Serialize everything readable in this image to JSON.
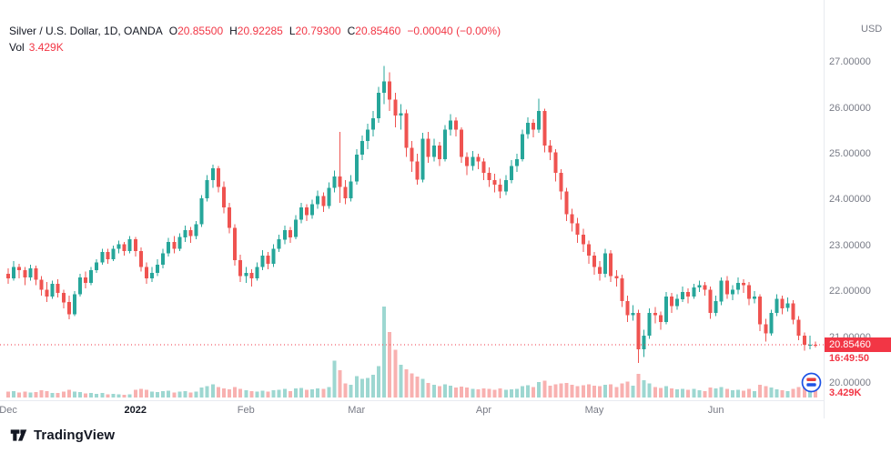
{
  "legend": {
    "symbol": "Silver / U.S. Dollar, 1D, OANDA",
    "open_label": "O",
    "open_value": "20.85500",
    "high_label": "H",
    "high_value": "20.92285",
    "low_label": "L",
    "low_value": "20.79300",
    "close_label": "C",
    "close_value": "20.85460",
    "change": "−0.00040 (−0.00%)",
    "vol_label": "Vol",
    "vol_value": "3.429K"
  },
  "price_axis": {
    "currency": "USD",
    "ticks": [
      "27.00000",
      "26.00000",
      "25.00000",
      "24.00000",
      "23.00000",
      "22.00000",
      "21.00000",
      "20.00000"
    ],
    "tick_values": [
      27,
      26,
      25,
      24,
      23,
      22,
      21,
      20
    ],
    "last_price": "20.85460",
    "countdown": "16:49:50",
    "volume_label": "3.429K"
  },
  "time_axis": {
    "ticks": [
      {
        "index": 0,
        "label": "Dec",
        "major": false
      },
      {
        "index": 23,
        "label": "2022",
        "major": true
      },
      {
        "index": 43,
        "label": "Feb",
        "major": false
      },
      {
        "index": 63,
        "label": "Mar",
        "major": false
      },
      {
        "index": 86,
        "label": "Apr",
        "major": false
      },
      {
        "index": 106,
        "label": "May",
        "major": false
      },
      {
        "index": 128,
        "label": "Jun",
        "major": false
      }
    ]
  },
  "footer": {
    "brand": "TradingView"
  },
  "colors": {
    "up": "#26a69a",
    "down": "#ef5350",
    "accent_red": "#f23645",
    "text": "#131722",
    "muted": "#787b86"
  },
  "chart_data": {
    "type": "candlestick",
    "title": "Silver / U.S. Dollar, 1D, OANDA",
    "timeframe": "1D",
    "ylabel": "USD",
    "ylim": [
      19.7,
      27.9
    ],
    "last_price": 20.8546,
    "volume_unit": "K",
    "vol_max": 35,
    "candles_format": [
      "open",
      "high",
      "low",
      "close",
      "volume_K"
    ],
    "candles": [
      [
        22.4,
        22.52,
        22.18,
        22.3,
        2.1
      ],
      [
        22.3,
        22.68,
        22.25,
        22.55,
        2.4
      ],
      [
        22.55,
        22.62,
        22.3,
        22.48,
        1.9
      ],
      [
        22.48,
        22.55,
        22.15,
        22.32,
        2.2
      ],
      [
        22.32,
        22.6,
        22.25,
        22.52,
        1.8
      ],
      [
        22.52,
        22.58,
        22.15,
        22.27,
        2.0
      ],
      [
        22.27,
        22.35,
        21.92,
        22.05,
        2.6
      ],
      [
        22.05,
        22.22,
        21.78,
        21.9,
        2.3
      ],
      [
        21.9,
        22.25,
        21.85,
        22.18,
        1.7
      ],
      [
        22.18,
        22.28,
        21.88,
        21.98,
        1.6
      ],
      [
        21.98,
        22.05,
        21.65,
        21.78,
        2.1
      ],
      [
        21.78,
        21.92,
        21.41,
        21.52,
        2.9
      ],
      [
        21.52,
        22.02,
        21.48,
        21.95,
        2.2
      ],
      [
        21.95,
        22.4,
        21.9,
        22.32,
        2.0
      ],
      [
        22.32,
        22.45,
        22.08,
        22.2,
        1.5
      ],
      [
        22.2,
        22.55,
        22.15,
        22.48,
        1.7
      ],
      [
        22.48,
        22.72,
        22.42,
        22.65,
        1.4
      ],
      [
        22.65,
        22.95,
        22.6,
        22.88,
        1.6
      ],
      [
        22.88,
        22.95,
        22.62,
        22.72,
        1.2
      ],
      [
        22.72,
        23.02,
        22.68,
        22.95,
        1.3
      ],
      [
        22.95,
        23.12,
        22.85,
        23.05,
        1.1
      ],
      [
        23.05,
        23.1,
        22.8,
        22.9,
        1.0
      ],
      [
        22.9,
        23.22,
        22.85,
        23.15,
        1.2
      ],
      [
        23.15,
        23.2,
        22.78,
        22.9,
        2.8
      ],
      [
        22.9,
        22.98,
        22.45,
        22.55,
        3.1
      ],
      [
        22.55,
        22.65,
        22.18,
        22.3,
        2.9
      ],
      [
        22.3,
        22.55,
        22.22,
        22.42,
        2.2
      ],
      [
        22.42,
        22.72,
        22.35,
        22.6,
        2.0
      ],
      [
        22.6,
        22.95,
        22.52,
        22.85,
        2.3
      ],
      [
        22.85,
        23.18,
        22.78,
        23.1,
        2.5
      ],
      [
        23.1,
        23.22,
        22.85,
        22.95,
        1.9
      ],
      [
        22.95,
        23.28,
        22.9,
        23.2,
        2.1
      ],
      [
        23.2,
        23.45,
        23.1,
        23.35,
        2.4
      ],
      [
        23.35,
        23.42,
        23.08,
        23.22,
        1.8
      ],
      [
        23.22,
        23.55,
        23.15,
        23.48,
        2.2
      ],
      [
        23.48,
        24.12,
        23.42,
        24.05,
        3.6
      ],
      [
        24.05,
        24.55,
        23.98,
        24.45,
        4.2
      ],
      [
        24.45,
        24.78,
        24.28,
        24.7,
        4.8
      ],
      [
        24.7,
        24.75,
        24.18,
        24.3,
        3.9
      ],
      [
        24.3,
        24.42,
        23.72,
        23.85,
        3.4
      ],
      [
        23.85,
        23.95,
        23.28,
        23.4,
        3.0
      ],
      [
        23.4,
        23.48,
        22.58,
        22.7,
        3.8
      ],
      [
        22.7,
        22.82,
        22.22,
        22.35,
        3.2
      ],
      [
        22.35,
        22.55,
        22.2,
        22.42,
        2.6
      ],
      [
        22.42,
        22.5,
        22.12,
        22.3,
        2.4
      ],
      [
        22.3,
        22.65,
        22.25,
        22.55,
        2.2
      ],
      [
        22.55,
        22.92,
        22.48,
        22.8,
        2.5
      ],
      [
        22.8,
        22.88,
        22.5,
        22.62,
        2.1
      ],
      [
        22.62,
        23.05,
        22.55,
        22.95,
        2.7
      ],
      [
        22.95,
        23.25,
        22.88,
        23.15,
        2.9
      ],
      [
        23.15,
        23.45,
        23.05,
        23.35,
        3.1
      ],
      [
        23.35,
        23.42,
        23.08,
        23.2,
        2.3
      ],
      [
        23.2,
        23.68,
        23.15,
        23.58,
        3.3
      ],
      [
        23.58,
        23.95,
        23.5,
        23.85,
        3.5
      ],
      [
        23.85,
        23.92,
        23.55,
        23.68,
        2.8
      ],
      [
        23.68,
        24.02,
        23.6,
        23.92,
        3.0
      ],
      [
        23.92,
        24.22,
        23.82,
        24.1,
        3.4
      ],
      [
        24.1,
        24.18,
        23.75,
        23.88,
        3.1
      ],
      [
        23.88,
        24.4,
        23.82,
        24.28,
        3.8
      ],
      [
        24.28,
        24.65,
        24.18,
        24.52,
        13.5
      ],
      [
        24.52,
        25.5,
        23.95,
        24.3,
        10.0
      ],
      [
        24.3,
        24.45,
        23.92,
        24.05,
        5.2
      ],
      [
        24.05,
        24.55,
        23.98,
        24.42,
        4.6
      ],
      [
        24.42,
        25.12,
        24.35,
        25.0,
        7.8
      ],
      [
        25.0,
        25.42,
        24.88,
        25.3,
        6.9
      ],
      [
        25.3,
        25.68,
        25.12,
        25.55,
        7.2
      ],
      [
        25.55,
        25.95,
        25.4,
        25.8,
        8.4
      ],
      [
        25.8,
        26.48,
        25.7,
        26.35,
        11.5
      ],
      [
        26.35,
        26.94,
        26.1,
        26.6,
        33.4
      ],
      [
        26.6,
        26.8,
        25.95,
        26.2,
        24.0
      ],
      [
        26.2,
        26.35,
        25.6,
        25.85,
        17.5
      ],
      [
        25.85,
        26.1,
        25.55,
        25.9,
        12.0
      ],
      [
        25.9,
        25.98,
        24.95,
        25.15,
        10.4
      ],
      [
        25.15,
        25.3,
        24.62,
        24.85,
        8.9
      ],
      [
        24.85,
        25.02,
        24.35,
        24.45,
        7.6
      ],
      [
        24.45,
        25.48,
        24.4,
        25.35,
        6.8
      ],
      [
        25.35,
        25.5,
        24.82,
        24.95,
        5.4
      ],
      [
        24.95,
        25.35,
        24.85,
        25.2,
        4.6
      ],
      [
        25.2,
        25.28,
        24.75,
        24.9,
        4.2
      ],
      [
        24.9,
        25.65,
        24.85,
        25.55,
        4.8
      ],
      [
        25.55,
        25.88,
        25.42,
        25.75,
        4.4
      ],
      [
        25.75,
        25.82,
        25.4,
        25.55,
        3.6
      ],
      [
        25.55,
        25.6,
        24.82,
        24.95,
        4.0
      ],
      [
        24.95,
        25.05,
        24.55,
        24.75,
        3.7
      ],
      [
        24.75,
        25.08,
        24.65,
        24.95,
        3.2
      ],
      [
        24.95,
        25.02,
        24.68,
        24.85,
        3.0
      ],
      [
        24.85,
        24.92,
        24.45,
        24.6,
        3.4
      ],
      [
        24.6,
        24.72,
        24.3,
        24.45,
        3.1
      ],
      [
        24.45,
        24.58,
        24.18,
        24.35,
        2.9
      ],
      [
        24.35,
        24.48,
        24.05,
        24.2,
        3.3
      ],
      [
        24.2,
        24.55,
        24.12,
        24.45,
        2.8
      ],
      [
        24.45,
        24.88,
        24.38,
        24.75,
        3.0
      ],
      [
        24.75,
        25.02,
        24.62,
        24.9,
        3.2
      ],
      [
        24.9,
        25.55,
        24.85,
        25.45,
        4.1
      ],
      [
        25.45,
        25.82,
        25.35,
        25.7,
        4.5
      ],
      [
        25.7,
        25.78,
        25.38,
        25.55,
        3.8
      ],
      [
        25.55,
        26.22,
        25.48,
        25.95,
        5.6
      ],
      [
        25.95,
        26.0,
        25.05,
        25.2,
        6.2
      ],
      [
        25.2,
        25.32,
        24.88,
        25.05,
        4.4
      ],
      [
        25.05,
        25.12,
        24.42,
        24.6,
        4.8
      ],
      [
        24.6,
        24.68,
        24.02,
        24.2,
        5.1
      ],
      [
        24.2,
        24.28,
        23.55,
        23.7,
        5.4
      ],
      [
        23.7,
        23.82,
        23.32,
        23.5,
        4.6
      ],
      [
        23.5,
        23.62,
        23.08,
        23.25,
        4.2
      ],
      [
        23.25,
        23.38,
        22.88,
        23.05,
        4.5
      ],
      [
        23.05,
        23.12,
        22.62,
        22.8,
        4.9
      ],
      [
        22.8,
        22.88,
        22.38,
        22.55,
        4.4
      ],
      [
        22.55,
        22.68,
        22.25,
        22.4,
        4.1
      ],
      [
        22.4,
        22.95,
        22.32,
        22.85,
        4.6
      ],
      [
        22.85,
        22.92,
        22.22,
        22.35,
        4.8
      ],
      [
        22.35,
        22.48,
        22.12,
        22.3,
        3.9
      ],
      [
        22.3,
        22.38,
        21.68,
        21.8,
        5.2
      ],
      [
        21.8,
        21.92,
        21.35,
        21.5,
        5.8
      ],
      [
        21.5,
        21.72,
        21.38,
        21.55,
        4.4
      ],
      [
        21.55,
        21.62,
        20.45,
        20.75,
        8.6
      ],
      [
        20.75,
        21.18,
        20.58,
        21.05,
        6.4
      ],
      [
        21.05,
        21.65,
        20.98,
        21.55,
        5.2
      ],
      [
        21.55,
        21.68,
        21.32,
        21.5,
        3.8
      ],
      [
        21.5,
        21.58,
        21.18,
        21.35,
        3.5
      ],
      [
        21.35,
        22.0,
        21.3,
        21.9,
        4.2
      ],
      [
        21.9,
        21.98,
        21.55,
        21.7,
        3.4
      ],
      [
        21.7,
        21.95,
        21.62,
        21.85,
        3.0
      ],
      [
        21.85,
        22.12,
        21.78,
        22.0,
        3.2
      ],
      [
        22.0,
        22.08,
        21.75,
        21.9,
        2.8
      ],
      [
        21.9,
        22.18,
        21.85,
        22.1,
        3.1
      ],
      [
        22.1,
        22.25,
        22.0,
        22.15,
        2.6
      ],
      [
        22.15,
        22.22,
        21.92,
        22.05,
        2.4
      ],
      [
        22.05,
        22.12,
        21.42,
        21.55,
        3.6
      ],
      [
        21.55,
        21.92,
        21.48,
        21.8,
        3.4
      ],
      [
        21.8,
        22.32,
        21.72,
        22.25,
        3.8
      ],
      [
        22.25,
        22.35,
        21.85,
        21.95,
        3.2
      ],
      [
        21.95,
        22.15,
        21.82,
        22.05,
        2.6
      ],
      [
        22.05,
        22.32,
        21.95,
        22.2,
        2.9
      ],
      [
        22.2,
        22.28,
        21.98,
        22.15,
        2.5
      ],
      [
        22.15,
        22.22,
        21.72,
        21.85,
        3.1
      ],
      [
        21.85,
        22.02,
        21.75,
        21.9,
        2.4
      ],
      [
        21.9,
        21.95,
        21.15,
        21.3,
        4.6
      ],
      [
        21.3,
        21.42,
        20.92,
        21.1,
        4.2
      ],
      [
        21.1,
        21.62,
        21.05,
        21.55,
        3.6
      ],
      [
        21.55,
        21.95,
        21.48,
        21.85,
        3.0
      ],
      [
        21.85,
        21.92,
        21.52,
        21.65,
        2.6
      ],
      [
        21.65,
        21.88,
        21.58,
        21.75,
        2.4
      ],
      [
        21.75,
        21.82,
        21.3,
        21.4,
        3.2
      ],
      [
        21.4,
        21.48,
        20.95,
        21.05,
        3.8
      ],
      [
        21.05,
        21.12,
        20.72,
        20.85,
        4.1
      ],
      [
        20.85,
        21.05,
        20.75,
        20.855,
        3.0
      ],
      [
        20.855,
        20.92285,
        20.793,
        20.8546,
        3.429
      ]
    ]
  }
}
